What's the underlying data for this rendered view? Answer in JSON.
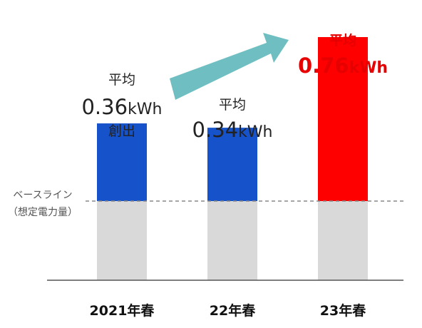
{
  "chart_data": {
    "type": "bar",
    "categories": [
      "2021年春",
      "22年春",
      "23年春"
    ],
    "values": [
      0.36,
      0.34,
      0.76
    ],
    "ylim": [
      0,
      0.9
    ],
    "baseline": {
      "label_line1": "ベースライン",
      "label_line2": "（想定電力量）"
    },
    "labels": [
      {
        "line1": "平均",
        "value": "0.36",
        "unit": "kWh",
        "line3": "創出"
      },
      {
        "line1": "平均",
        "value": "0.34",
        "unit": "kWh",
        "line3": ""
      },
      {
        "line1": "平均",
        "value": "0.76",
        "unit": "kWh",
        "line3": ""
      }
    ],
    "highlight_index": 2,
    "colors": {
      "bar": "#1652c9",
      "highlight": "#ff0000",
      "baseline_fill": "#d9d9d9",
      "arrow": "#6fbfc2",
      "highlight_text": "#e60000"
    }
  }
}
